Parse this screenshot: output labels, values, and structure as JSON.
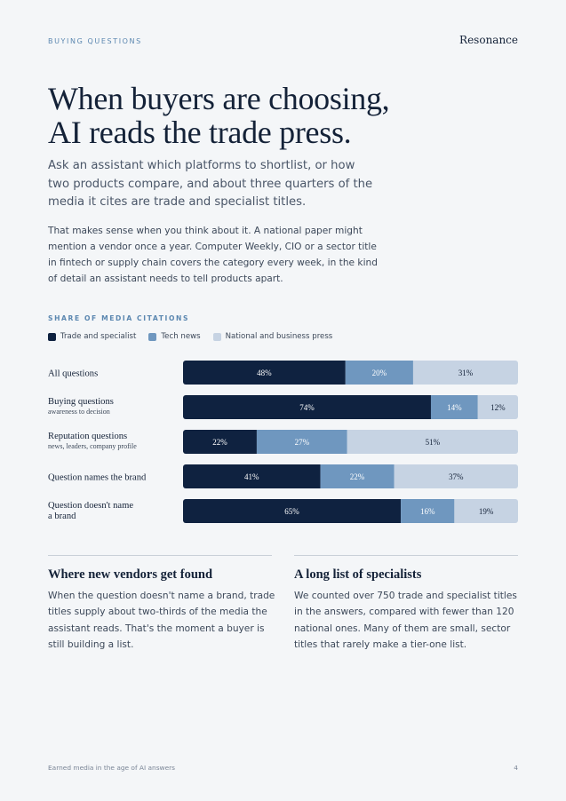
{
  "header": {
    "eyebrow": "BUYING QUESTIONS",
    "brand": "Resonance"
  },
  "title": {
    "line1": "When buyers are choosing,",
    "line2": "AI reads the trade press."
  },
  "lede": "Ask an assistant which platforms to shortlist, or how two products compare, and about three quarters of the media it cites are trade and specialist titles.",
  "body": "That makes sense when you think about it. A national paper might mention a vendor once a year. Computer Weekly, CIO or a sector title in fintech or supply chain covers the category every week, in the kind of detail an assistant needs to tell products apart.",
  "colors": {
    "trade": "#0f2240",
    "tech": "#6f97bf",
    "national": "#c6d3e3"
  },
  "chart_data": {
    "type": "bar",
    "orientation": "horizontal",
    "stacked": true,
    "title": "SHARE OF MEDIA CITATIONS",
    "legend": [
      "Trade and specialist",
      "Tech news",
      "National and business press"
    ],
    "legend_position": "top-left",
    "unit": "%",
    "categories": [
      {
        "label": "All questions",
        "sublabel": ""
      },
      {
        "label": "Buying questions",
        "sublabel": "awareness to decision"
      },
      {
        "label": "Reputation questions",
        "sublabel": "news, leaders, company profile"
      },
      {
        "label": "Question names the brand",
        "sublabel": ""
      },
      {
        "label": "Question doesn't name a brand",
        "sublabel": ""
      }
    ],
    "series": [
      {
        "name": "Trade and specialist",
        "values": [
          48,
          74,
          22,
          41,
          65
        ]
      },
      {
        "name": "Tech news",
        "values": [
          20,
          14,
          27,
          22,
          16
        ]
      },
      {
        "name": "National and business press",
        "values": [
          31,
          12,
          51,
          37,
          19
        ]
      }
    ]
  },
  "columns": [
    {
      "title": "Where new vendors get found",
      "text": "When the question doesn't name a brand, trade titles supply about two-thirds of the media the assistant reads. That's the moment a buyer is still building a list."
    },
    {
      "title": "A long list of specialists",
      "text": "We counted over 750 trade and specialist titles in the answers, compared with fewer than 120 national ones. Many of them are small, sector titles that rarely make a tier-one list."
    }
  ],
  "footer": {
    "left": "Earned media in the age of AI answers",
    "page": "4"
  }
}
